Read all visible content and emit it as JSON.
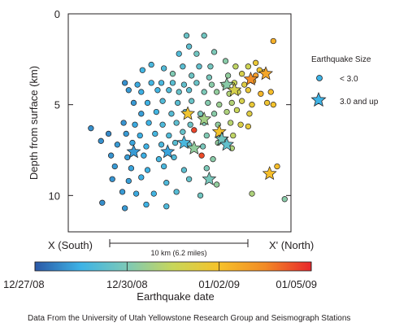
{
  "chart_data": {
    "type": "scatter",
    "title": "",
    "ylabel": "Depth from surface (km)",
    "xlabel": "",
    "ylim": [
      0,
      12
    ],
    "y_ticks": [
      "0",
      "5",
      "10"
    ],
    "y_tick_values": [
      0,
      5,
      10
    ],
    "y_inverted": true,
    "xlim": [
      -2.2,
      15.5
    ],
    "grid": false,
    "x_section_labels": {
      "left": "X (South)",
      "right": "X' (North)"
    },
    "scale_bar": {
      "label": "10 km (6.2 miles)",
      "length_km": 10
    },
    "legend": {
      "title": "Earthquake Size",
      "position": "right",
      "entries": [
        {
          "label": "< 3.0",
          "marker": "circle"
        },
        {
          "label": "3.0 and up",
          "marker": "star"
        }
      ]
    },
    "colorbar": {
      "label": "Earthquake date",
      "tick_labels": [
        "12/27/08",
        "12/30/08",
        "01/02/09",
        "01/05/09"
      ],
      "stops": [
        "#2b58a6",
        "#3db3e6",
        "#7dc9b7",
        "#c8d65a",
        "#f6c22a",
        "#f28a26",
        "#e8262b"
      ]
    },
    "series": [
      {
        "marker": "circle",
        "points": [
          {
            "x": 7.2,
            "y": 1.2,
            "t": 0.28
          },
          {
            "x": 8.6,
            "y": 1.2,
            "t": 0.3
          },
          {
            "x": 7.4,
            "y": 1.8,
            "t": 0.25
          },
          {
            "x": 6.6,
            "y": 2.2,
            "t": 0.22
          },
          {
            "x": 8.0,
            "y": 2.2,
            "t": 0.3
          },
          {
            "x": 9.4,
            "y": 2.1,
            "t": 0.33
          },
          {
            "x": 10.3,
            "y": 2.6,
            "t": 0.36
          },
          {
            "x": 14.1,
            "y": 1.5,
            "t": 0.72
          },
          {
            "x": 12.7,
            "y": 2.7,
            "t": 0.62
          },
          {
            "x": 11.1,
            "y": 2.9,
            "t": 0.48
          },
          {
            "x": 8.2,
            "y": 2.9,
            "t": 0.26
          },
          {
            "x": 4.4,
            "y": 2.8,
            "t": 0.2
          },
          {
            "x": 3.7,
            "y": 3.1,
            "t": 0.18
          },
          {
            "x": 5.4,
            "y": 3.0,
            "t": 0.22
          },
          {
            "x": 6.9,
            "y": 2.9,
            "t": 0.24
          },
          {
            "x": 9.1,
            "y": 2.9,
            "t": 0.31
          },
          {
            "x": 12.1,
            "y": 2.9,
            "t": 0.52
          },
          {
            "x": 13.0,
            "y": 3.1,
            "t": 0.64
          },
          {
            "x": 6.1,
            "y": 3.3,
            "t": 0.34
          },
          {
            "x": 7.6,
            "y": 3.4,
            "t": 0.29
          },
          {
            "x": 9.0,
            "y": 3.5,
            "t": 0.32
          },
          {
            "x": 10.5,
            "y": 3.4,
            "t": 0.38
          },
          {
            "x": 11.6,
            "y": 3.3,
            "t": 0.55
          },
          {
            "x": 12.3,
            "y": 3.6,
            "t": 0.75
          },
          {
            "x": 12.7,
            "y": 3.4,
            "t": 0.78
          },
          {
            "x": 13.4,
            "y": 3.2,
            "t": 0.66
          },
          {
            "x": 2.3,
            "y": 3.8,
            "t": 0.1
          },
          {
            "x": 3.3,
            "y": 3.9,
            "t": 0.15
          },
          {
            "x": 4.4,
            "y": 3.8,
            "t": 0.18
          },
          {
            "x": 5.2,
            "y": 3.8,
            "t": 0.2
          },
          {
            "x": 6.1,
            "y": 3.8,
            "t": 0.24
          },
          {
            "x": 7.0,
            "y": 3.9,
            "t": 0.26
          },
          {
            "x": 8.0,
            "y": 3.8,
            "t": 0.28
          },
          {
            "x": 9.2,
            "y": 3.9,
            "t": 0.36
          },
          {
            "x": 10.2,
            "y": 3.9,
            "t": 0.42
          },
          {
            "x": 11.0,
            "y": 3.8,
            "t": 0.5
          },
          {
            "x": 11.8,
            "y": 3.9,
            "t": 0.58
          },
          {
            "x": 12.5,
            "y": 3.7,
            "t": 0.72
          },
          {
            "x": 2.6,
            "y": 4.2,
            "t": 0.12
          },
          {
            "x": 3.6,
            "y": 4.3,
            "t": 0.16
          },
          {
            "x": 4.9,
            "y": 4.2,
            "t": 0.18
          },
          {
            "x": 5.8,
            "y": 4.2,
            "t": 0.22
          },
          {
            "x": 6.6,
            "y": 4.3,
            "t": 0.27
          },
          {
            "x": 7.4,
            "y": 4.2,
            "t": 0.25
          },
          {
            "x": 8.6,
            "y": 4.3,
            "t": 0.33
          },
          {
            "x": 9.6,
            "y": 4.3,
            "t": 0.38
          },
          {
            "x": 10.6,
            "y": 4.4,
            "t": 0.45
          },
          {
            "x": 11.3,
            "y": 4.3,
            "t": 0.52
          },
          {
            "x": 12.1,
            "y": 4.2,
            "t": 0.62
          },
          {
            "x": 13.1,
            "y": 4.4,
            "t": 0.7
          },
          {
            "x": 13.9,
            "y": 4.3,
            "t": 0.68
          },
          {
            "x": 3.0,
            "y": 4.9,
            "t": 0.12
          },
          {
            "x": 4.1,
            "y": 4.9,
            "t": 0.17
          },
          {
            "x": 5.3,
            "y": 4.8,
            "t": 0.22
          },
          {
            "x": 6.5,
            "y": 4.9,
            "t": 0.24
          },
          {
            "x": 7.6,
            "y": 4.8,
            "t": 0.28
          },
          {
            "x": 8.9,
            "y": 4.9,
            "t": 0.35
          },
          {
            "x": 9.8,
            "y": 5.0,
            "t": 0.4
          },
          {
            "x": 10.8,
            "y": 4.9,
            "t": 0.45
          },
          {
            "x": 11.6,
            "y": 4.8,
            "t": 0.55
          },
          {
            "x": 12.4,
            "y": 5.0,
            "t": 0.62
          },
          {
            "x": 13.6,
            "y": 4.9,
            "t": 0.64
          },
          {
            "x": 14.1,
            "y": 5.0,
            "t": 0.66
          },
          {
            "x": 3.6,
            "y": 5.5,
            "t": 0.13
          },
          {
            "x": 4.8,
            "y": 5.4,
            "t": 0.18
          },
          {
            "x": 6.0,
            "y": 5.5,
            "t": 0.23
          },
          {
            "x": 7.1,
            "y": 5.4,
            "t": 0.26
          },
          {
            "x": 8.3,
            "y": 5.5,
            "t": 0.32
          },
          {
            "x": 9.4,
            "y": 5.5,
            "t": 0.36
          },
          {
            "x": 10.4,
            "y": 5.4,
            "t": 0.44
          },
          {
            "x": 11.2,
            "y": 5.3,
            "t": 0.5
          },
          {
            "x": 12.2,
            "y": 5.5,
            "t": 0.58
          },
          {
            "x": 2.2,
            "y": 6.0,
            "t": 0.11
          },
          {
            "x": 3.1,
            "y": 6.1,
            "t": 0.15
          },
          {
            "x": 4.2,
            "y": 6.0,
            "t": 0.17
          },
          {
            "x": 5.3,
            "y": 6.1,
            "t": 0.21
          },
          {
            "x": 6.4,
            "y": 6.0,
            "t": 0.25
          },
          {
            "x": 7.5,
            "y": 6.1,
            "t": 0.28
          },
          {
            "x": 8.6,
            "y": 6.0,
            "t": 0.34
          },
          {
            "x": 9.7,
            "y": 6.1,
            "t": 0.38
          },
          {
            "x": 10.7,
            "y": 6.0,
            "t": 0.46
          },
          {
            "x": 11.5,
            "y": 6.1,
            "t": 0.56
          },
          {
            "x": 12.1,
            "y": 6.2,
            "t": 0.6
          },
          {
            "x": -0.4,
            "y": 6.3,
            "t": 0.1
          },
          {
            "x": 1.0,
            "y": 6.6,
            "t": 0.09
          },
          {
            "x": 2.4,
            "y": 6.6,
            "t": 0.12
          },
          {
            "x": 3.5,
            "y": 6.7,
            "t": 0.16
          },
          {
            "x": 4.7,
            "y": 6.6,
            "t": 0.19
          },
          {
            "x": 5.8,
            "y": 6.7,
            "t": 0.22
          },
          {
            "x": 6.9,
            "y": 6.5,
            "t": 0.27
          },
          {
            "x": 7.8,
            "y": 6.4,
            "t": 0.95
          },
          {
            "x": 8.8,
            "y": 6.7,
            "t": 0.34
          },
          {
            "x": 9.9,
            "y": 6.6,
            "t": 0.4
          },
          {
            "x": 10.9,
            "y": 6.7,
            "t": 0.48
          },
          {
            "x": 0.4,
            "y": 7.0,
            "t": 0.1
          },
          {
            "x": 1.7,
            "y": 7.2,
            "t": 0.12
          },
          {
            "x": 2.9,
            "y": 7.1,
            "t": 0.14
          },
          {
            "x": 4.0,
            "y": 7.3,
            "t": 0.17
          },
          {
            "x": 5.2,
            "y": 7.2,
            "t": 0.2
          },
          {
            "x": 6.3,
            "y": 7.1,
            "t": 0.24
          },
          {
            "x": 7.4,
            "y": 7.2,
            "t": 0.26
          },
          {
            "x": 8.5,
            "y": 7.3,
            "t": 0.32
          },
          {
            "x": 9.7,
            "y": 7.1,
            "t": 0.38
          },
          {
            "x": 10.8,
            "y": 7.4,
            "t": 0.44
          },
          {
            "x": 1.2,
            "y": 7.8,
            "t": 0.11
          },
          {
            "x": 2.5,
            "y": 7.9,
            "t": 0.13
          },
          {
            "x": 3.8,
            "y": 7.8,
            "t": 0.16
          },
          {
            "x": 5.0,
            "y": 8.0,
            "t": 0.19
          },
          {
            "x": 6.2,
            "y": 7.9,
            "t": 0.22
          },
          {
            "x": 8.4,
            "y": 7.8,
            "t": 0.94
          },
          {
            "x": 9.3,
            "y": 8.0,
            "t": 0.36
          },
          {
            "x": 1.5,
            "y": 8.4,
            "t": 0.12
          },
          {
            "x": 2.8,
            "y": 8.5,
            "t": 0.14
          },
          {
            "x": 4.1,
            "y": 8.6,
            "t": 0.17
          },
          {
            "x": 5.4,
            "y": 8.4,
            "t": 0.2
          },
          {
            "x": 7.0,
            "y": 8.6,
            "t": 0.25
          },
          {
            "x": 8.8,
            "y": 8.5,
            "t": 0.33
          },
          {
            "x": 14.4,
            "y": 8.4,
            "t": 0.68
          },
          {
            "x": 1.3,
            "y": 9.1,
            "t": 0.11
          },
          {
            "x": 2.6,
            "y": 9.2,
            "t": 0.13
          },
          {
            "x": 3.6,
            "y": 9.0,
            "t": 0.16
          },
          {
            "x": 5.6,
            "y": 9.3,
            "t": 0.21
          },
          {
            "x": 7.4,
            "y": 9.1,
            "t": 0.27
          },
          {
            "x": 9.6,
            "y": 9.4,
            "t": 0.38
          },
          {
            "x": 2.1,
            "y": 9.8,
            "t": 0.12
          },
          {
            "x": 3.2,
            "y": 9.9,
            "t": 0.15
          },
          {
            "x": 4.6,
            "y": 9.9,
            "t": 0.18
          },
          {
            "x": 6.4,
            "y": 9.8,
            "t": 0.23
          },
          {
            "x": 8.3,
            "y": 10.0,
            "t": 0.3
          },
          {
            "x": 12.4,
            "y": 9.9,
            "t": 0.44
          },
          {
            "x": 0.5,
            "y": 10.4,
            "t": 0.1
          },
          {
            "x": 2.3,
            "y": 10.7,
            "t": 0.12
          },
          {
            "x": 4.0,
            "y": 10.5,
            "t": 0.17
          },
          {
            "x": 5.6,
            "y": 10.6,
            "t": 0.21
          },
          {
            "x": 15.0,
            "y": 10.2,
            "t": 0.36
          }
        ]
      },
      {
        "marker": "star",
        "points": [
          {
            "x": 13.5,
            "y": 3.3,
            "t": 0.75
          },
          {
            "x": 12.3,
            "y": 3.6,
            "t": 0.82
          },
          {
            "x": 10.4,
            "y": 3.9,
            "t": 0.36
          },
          {
            "x": 11.0,
            "y": 4.2,
            "t": 0.55
          },
          {
            "x": 7.3,
            "y": 5.5,
            "t": 0.64
          },
          {
            "x": 8.6,
            "y": 5.8,
            "t": 0.42
          },
          {
            "x": 9.8,
            "y": 6.5,
            "t": 0.66
          },
          {
            "x": 10.0,
            "y": 6.9,
            "t": 0.3
          },
          {
            "x": 10.4,
            "y": 7.2,
            "t": 0.26
          },
          {
            "x": 7.0,
            "y": 7.1,
            "t": 0.2
          },
          {
            "x": 5.7,
            "y": 7.6,
            "t": 0.14
          },
          {
            "x": 3.0,
            "y": 7.6,
            "t": 0.12
          },
          {
            "x": 7.8,
            "y": 7.4,
            "t": 0.38
          },
          {
            "x": 9.0,
            "y": 9.1,
            "t": 0.32
          },
          {
            "x": 13.8,
            "y": 8.8,
            "t": 0.68
          }
        ]
      }
    ]
  },
  "credit": "Data From the University of Utah Yellowstone Research Group and Seismograph Stations"
}
